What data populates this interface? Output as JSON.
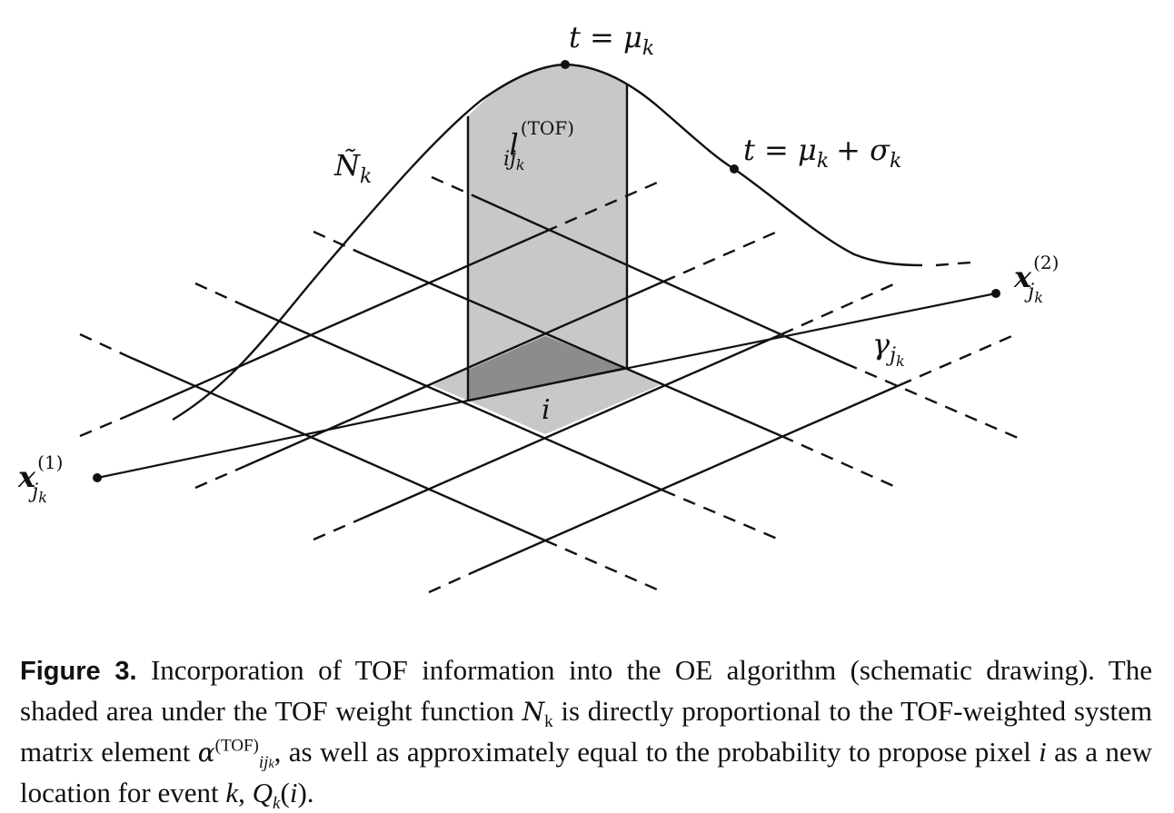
{
  "figure": {
    "labels": {
      "peak": "t = μ",
      "peak_sub": "k",
      "sigma": "t = μ",
      "sigma_sub": "k",
      "sigma_rest": "+ σ",
      "sigma_rest_sub": "k",
      "weight_fn": "Ñ",
      "weight_fn_sub": "k",
      "tof_length": "l",
      "tof_length_sup": "(TOF)",
      "tof_length_sub": "ij",
      "tof_length_subsub": "k",
      "pixel": "i",
      "x1": "x",
      "x1_sup": "(1)",
      "x1_sub": "j",
      "x1_subsub": "k",
      "x2": "x",
      "x2_sup": "(2)",
      "x2_sub": "j",
      "x2_subsub": "k",
      "gamma": "γ",
      "gamma_sub": "j",
      "gamma_subsub": "k"
    },
    "colors": {
      "shade_light": "#c8c8c8",
      "shade_dark": "#8c8c8c",
      "ink": "#111111"
    }
  },
  "caption": {
    "label": "Figure 3.",
    "part1": " Incorporation of TOF information into the OE algorithm (schematic drawing). The shaded area under the TOF weight function ",
    "weight_symbol": "N",
    "weight_sub": "k",
    "part2": " is directly proportional to the TOF-weighted system matrix element ",
    "alpha_symbol": "α",
    "alpha_sup": "(TOF)",
    "alpha_sub": "ij",
    "alpha_subsub": "k",
    "part3": ", as well as approximately equal to the probability to propose pixel ",
    "pixel_symbol": "i",
    "part4": " as a new location for event ",
    "event_symbol": "k",
    "part5": ", ",
    "q_symbol": "Q",
    "q_sub": "k",
    "q_arg_open": "(",
    "q_arg": "i",
    "q_arg_close": ")."
  }
}
